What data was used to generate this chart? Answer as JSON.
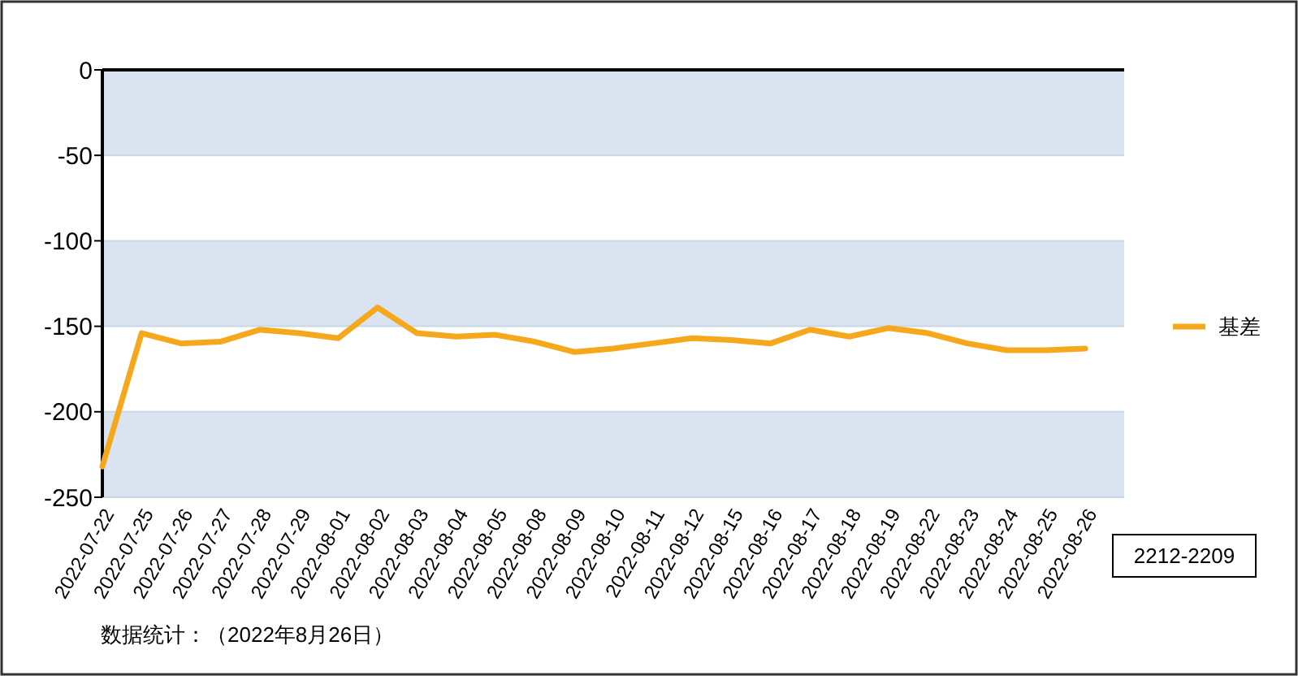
{
  "chart_data": {
    "type": "line",
    "categories": [
      "2022-07-22",
      "2022-07-25",
      "2022-07-26",
      "2022-07-27",
      "2022-07-28",
      "2022-07-29",
      "2022-08-01",
      "2022-08-02",
      "2022-08-03",
      "2022-08-04",
      "2022-08-05",
      "2022-08-08",
      "2022-08-09",
      "2022-08-10",
      "2022-08-11",
      "2022-08-12",
      "2022-08-15",
      "2022-08-16",
      "2022-08-17",
      "2022-08-18",
      "2022-08-19",
      "2022-08-22",
      "2022-08-23",
      "2022-08-24",
      "2022-08-25",
      "2022-08-26"
    ],
    "series": [
      {
        "name": "基差",
        "color": "#f5a81c",
        "values": [
          -232,
          -154,
          -160,
          -159,
          -152,
          -154,
          -157,
          -139,
          -154,
          -156,
          -155,
          -159,
          -165,
          -163,
          -160,
          -157,
          -158,
          -160,
          -152,
          -156,
          -151,
          -154,
          -160,
          -164,
          -164,
          -163
        ]
      }
    ],
    "ylim": [
      -250,
      0
    ],
    "yticks": [
      0,
      -50,
      -100,
      -150,
      -200,
      -250
    ],
    "grid": "y",
    "legend": "right",
    "marker": "none",
    "line_style": "solid",
    "annotations": [
      "2212-2209",
      "数据统计：（2022年8月26日）"
    ]
  }
}
